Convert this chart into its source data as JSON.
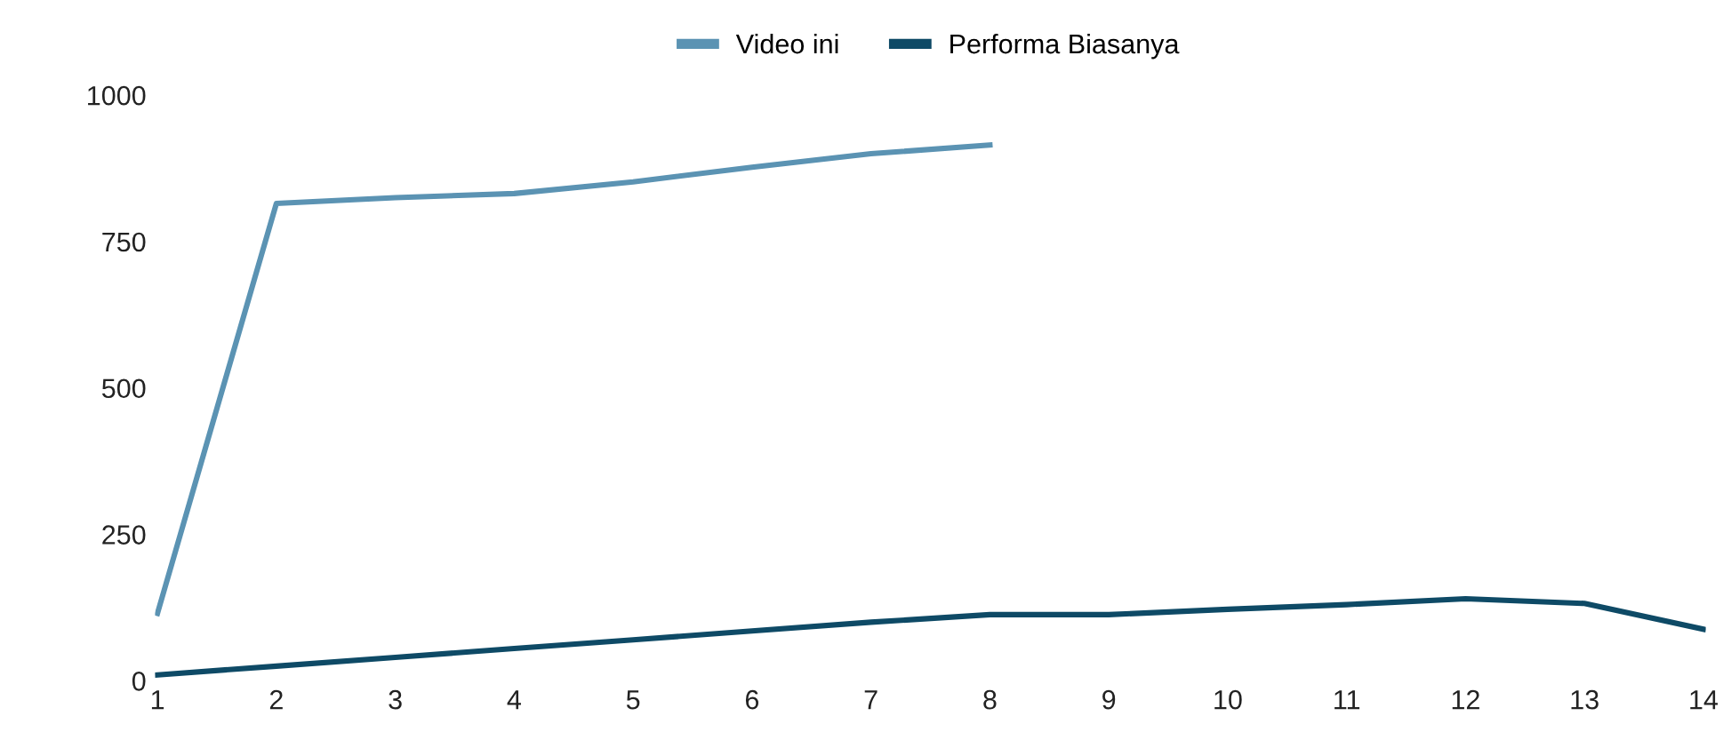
{
  "chart_data": {
    "type": "line",
    "categories": [
      "1",
      "2",
      "3",
      "4",
      "5",
      "6",
      "7",
      "8",
      "9",
      "10",
      "11",
      "12",
      "13",
      "14"
    ],
    "series": [
      {
        "name": "Video ini",
        "color": "#5b93b3",
        "values": [
          115,
          815,
          825,
          832,
          852,
          877,
          900,
          915,
          null,
          null,
          null,
          null,
          null,
          null
        ]
      },
      {
        "name": "Performa Biasanya",
        "color": "#0e4a66",
        "values": [
          10,
          25,
          40,
          55,
          70,
          85,
          100,
          113,
          113,
          122,
          130,
          140,
          132,
          88
        ]
      }
    ],
    "ylim": [
      0,
      1000
    ],
    "yticks": [
      0,
      250,
      500,
      750,
      1000
    ],
    "grid": false,
    "legend": "top",
    "marker": "none",
    "line_style": "solid"
  }
}
